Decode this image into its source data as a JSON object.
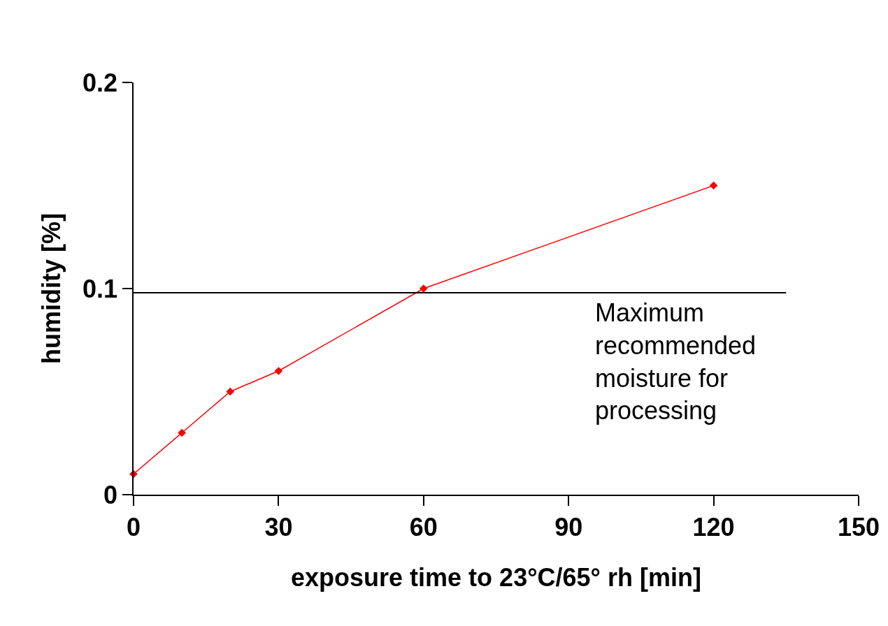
{
  "chart_data": {
    "type": "line",
    "xlabel": "exposure time to 23°C/65° rh [min]",
    "ylabel": "humidity [%]",
    "x": [
      0,
      10,
      20,
      30,
      60,
      120
    ],
    "series": [
      {
        "color": "#ff0000",
        "values": [
          0.01,
          0.03,
          0.05,
          0.06,
          0.1,
          0.15
        ]
      }
    ],
    "marker": "diamond",
    "line_style": "solid",
    "xlim": [
      0,
      150
    ],
    "xticks": [
      0,
      30,
      60,
      90,
      120,
      150
    ],
    "ylim": [
      0,
      0.2
    ],
    "yticks": [
      0,
      0.1,
      0.2
    ],
    "ref_lines": [
      {
        "axis": "y",
        "value": 0.098,
        "label": "Maximum\nrecommended\nmoisture for\nprocessing",
        "color": "#000000"
      }
    ]
  }
}
